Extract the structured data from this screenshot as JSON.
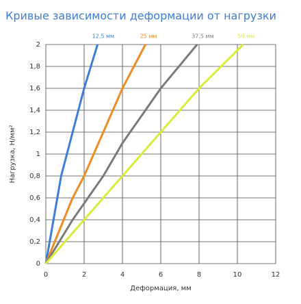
{
  "chart_data": {
    "type": "line",
    "title": "Кривые зависимости деформации от нагрузки",
    "xlabel": "Деформация, мм",
    "ylabel": "Нагрузка, Н/мм²",
    "xlim": [
      0,
      12
    ],
    "ylim": [
      0,
      2
    ],
    "xticks": [
      0,
      2,
      4,
      6,
      8,
      10,
      12
    ],
    "yticks": [
      0,
      {
        "value": 0.2,
        "label": "0,2"
      },
      {
        "value": 0.4,
        "label": "0,4"
      },
      {
        "value": 0.6,
        "label": "0,6"
      },
      {
        "value": 0.8,
        "label": "0,8"
      },
      1,
      {
        "value": 1.2,
        "label": "1,2"
      },
      {
        "value": 1.4,
        "label": "1,4"
      },
      {
        "value": 1.6,
        "label": "1,6"
      },
      {
        "value": 1.8,
        "label": "1,8"
      },
      2
    ],
    "grid": true,
    "series": [
      {
        "name": "12,5 мм",
        "color": "#3b7dd8",
        "x": [
          0,
          0.4,
          0.8,
          1.4,
          2,
          2.7
        ],
        "values": [
          0,
          0.4,
          0.8,
          1.2,
          1.6,
          2
        ]
      },
      {
        "name": "25 мм",
        "color": "#f08a24",
        "x": [
          0,
          0.7,
          1.4,
          2,
          3,
          4,
          5.2
        ],
        "values": [
          0,
          0.3,
          0.6,
          0.8,
          1.2,
          1.6,
          2
        ]
      },
      {
        "name": "37,5 мм",
        "color": "#7a7a7a",
        "x": [
          0,
          1.4,
          3,
          4,
          6,
          7.9
        ],
        "values": [
          0,
          0.4,
          0.8,
          1.1,
          1.6,
          2
        ]
      },
      {
        "name": "50 мм",
        "color": "#d6ef3c",
        "x": [
          0,
          2,
          4,
          6,
          8,
          10.3
        ],
        "values": [
          0,
          0.4,
          0.8,
          1.2,
          1.6,
          2
        ]
      }
    ]
  }
}
